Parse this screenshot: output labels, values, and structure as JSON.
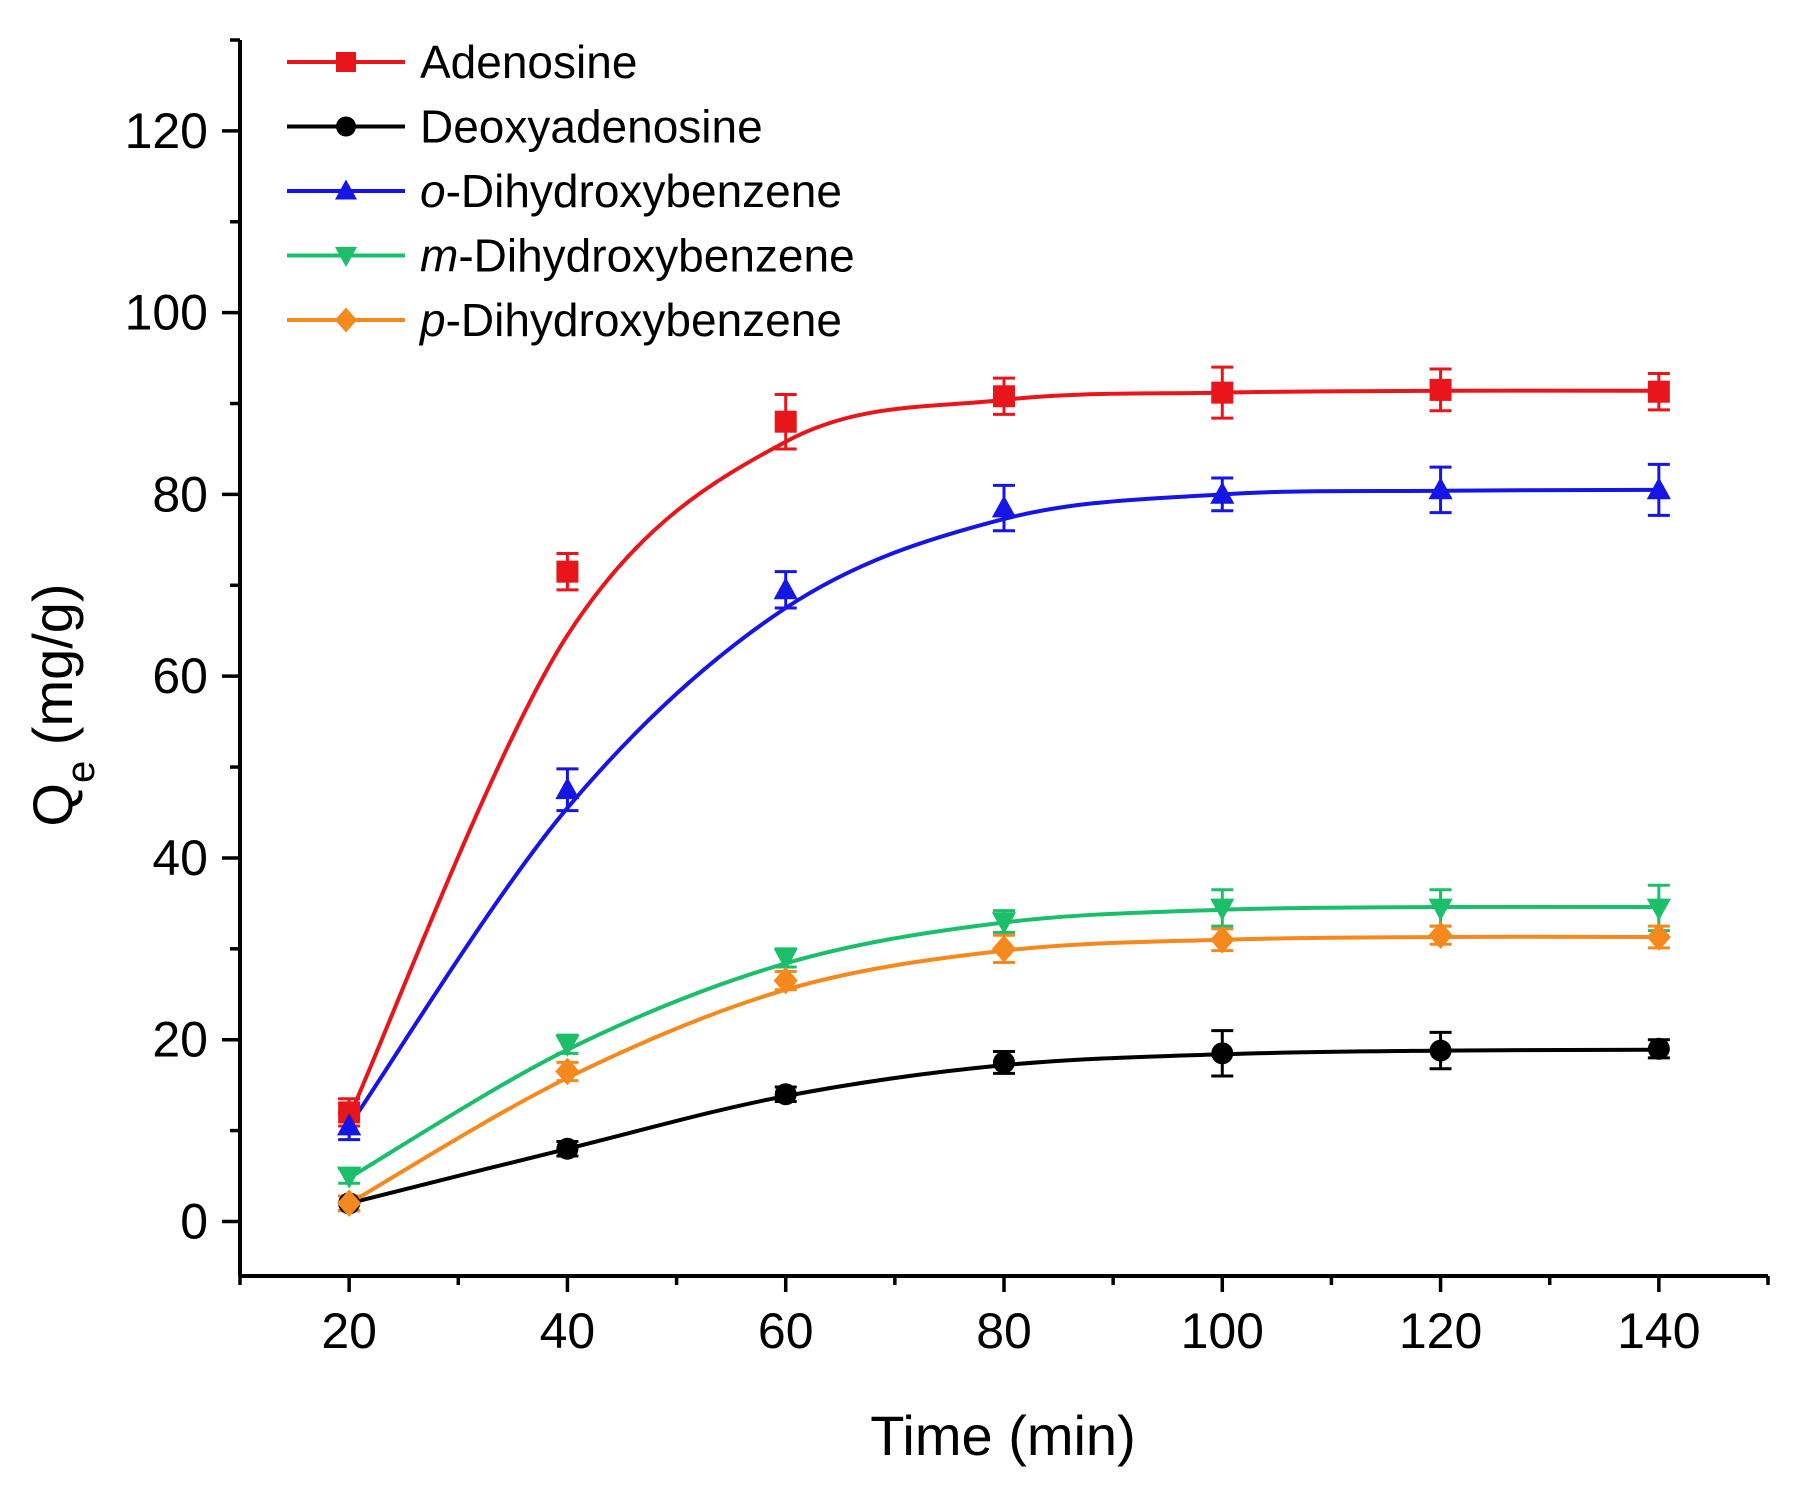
{
  "chart_data": {
    "type": "line",
    "title": "",
    "xlabel": "Time (min)",
    "ylabel_main": "Q",
    "ylabel_sub": "e",
    "ylabel_unit": " (mg/g)",
    "xlim": [
      10,
      150
    ],
    "ylim": [
      -6,
      130
    ],
    "xticks": [
      20,
      40,
      60,
      80,
      100,
      120,
      140
    ],
    "yticks": [
      0,
      20,
      40,
      60,
      80,
      100,
      120
    ],
    "x": [
      20,
      40,
      60,
      80,
      100,
      120,
      140
    ],
    "legend_position": "top-left",
    "series": [
      {
        "name": "Adenosine",
        "name_italic": "",
        "name_rest": "Adenosine",
        "color": "#e8161b",
        "marker": "square",
        "values": [
          12.0,
          71.5,
          88.0,
          90.8,
          91.2,
          91.5,
          91.3
        ],
        "errors": [
          1.5,
          2.0,
          3.0,
          2.0,
          2.8,
          2.3,
          2.0
        ],
        "fit": [
          11.5,
          64.5,
          85.8,
          90.4,
          91.2,
          91.4,
          91.4
        ]
      },
      {
        "name": "Deoxyadenosine",
        "name_italic": "",
        "name_rest": "Deoxyadenosine",
        "color": "#000000",
        "marker": "circle",
        "values": [
          2.0,
          8.0,
          14.0,
          17.5,
          18.5,
          18.8,
          19.0
        ],
        "errors": [
          0.8,
          0.8,
          0.8,
          1.2,
          2.5,
          2.0,
          1.0
        ],
        "fit": [
          2.0,
          8.0,
          13.8,
          17.2,
          18.4,
          18.8,
          18.9
        ]
      },
      {
        "name": "o-Dihydroxybenzene",
        "name_italic": "o",
        "name_rest": "-Dihydroxybenzene",
        "color": "#1515e6",
        "marker": "triangle-up",
        "values": [
          10.5,
          47.5,
          69.5,
          78.5,
          80.0,
          80.5,
          80.5
        ],
        "errors": [
          1.5,
          2.3,
          2.0,
          2.5,
          1.8,
          2.5,
          2.8
        ],
        "fit": [
          10.5,
          45.5,
          67.5,
          77.3,
          80.0,
          80.4,
          80.5
        ]
      },
      {
        "name": "m-Dihydroxybenzene",
        "name_italic": "m",
        "name_rest": "-Dihydroxybenzene",
        "color": "#1bbf6a",
        "marker": "triangle-down",
        "values": [
          5.0,
          19.5,
          29.0,
          33.0,
          34.5,
          34.5,
          34.5
        ],
        "errors": [
          0.8,
          1.0,
          1.0,
          1.2,
          2.0,
          2.0,
          2.5
        ],
        "fit": [
          4.8,
          18.9,
          28.4,
          32.9,
          34.3,
          34.6,
          34.6
        ]
      },
      {
        "name": "p-Dihydroxybenzene",
        "name_italic": "p",
        "name_rest": "-Dihydroxybenzene",
        "color": "#f5891e",
        "marker": "diamond",
        "values": [
          2.0,
          16.5,
          26.5,
          30.0,
          31.0,
          31.5,
          31.3
        ],
        "errors": [
          0.8,
          1.0,
          1.0,
          1.5,
          1.2,
          1.0,
          1.2
        ],
        "fit": [
          2.0,
          15.8,
          25.5,
          29.8,
          31.0,
          31.3,
          31.3
        ]
      }
    ]
  }
}
